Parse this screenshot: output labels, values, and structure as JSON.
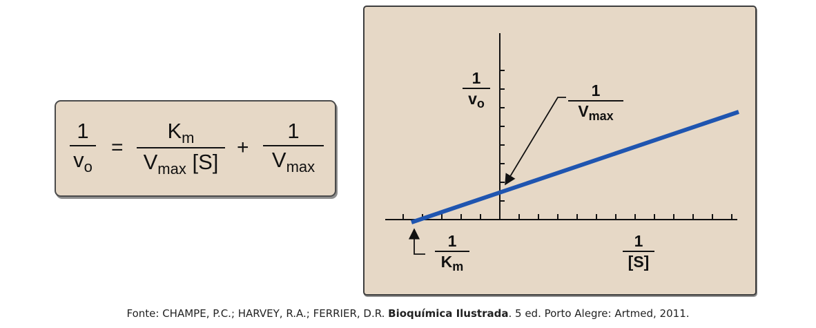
{
  "equation": {
    "lhs": {
      "numerator": "1",
      "denominator_main": "v",
      "denominator_sub": "o"
    },
    "equals": "=",
    "term1": {
      "numerator_main": "K",
      "numerator_sub": "m",
      "denominator_main": "V",
      "denominator_sub": "max",
      "denominator_suffix": " [S]"
    },
    "plus": "+",
    "term2": {
      "numerator": "1",
      "denominator_main": "V",
      "denominator_sub": "max"
    }
  },
  "graph": {
    "y_label": {
      "numerator": "1",
      "denominator_main": "v",
      "denominator_sub": "o"
    },
    "intercept_label": {
      "numerator": "1",
      "denominator_main": "V",
      "denominator_sub": "max"
    },
    "x_intercept_label": {
      "numerator": "1",
      "denominator_main": "K",
      "denominator_sub": "m"
    },
    "x_label": {
      "numerator": "1",
      "denominator": "[S]"
    },
    "line_color": "#1f55b0",
    "y_tick_count": 8,
    "x_tick_count": 18
  },
  "caption": {
    "prefix": "Fonte: CHAMPE, P.C.; HARVEY, R.A.; FERRIER, D.R. ",
    "title": "Bioquímica Ilustrada",
    "suffix": ". 5 ed. Porto Alegre: Artmed, 2011."
  }
}
